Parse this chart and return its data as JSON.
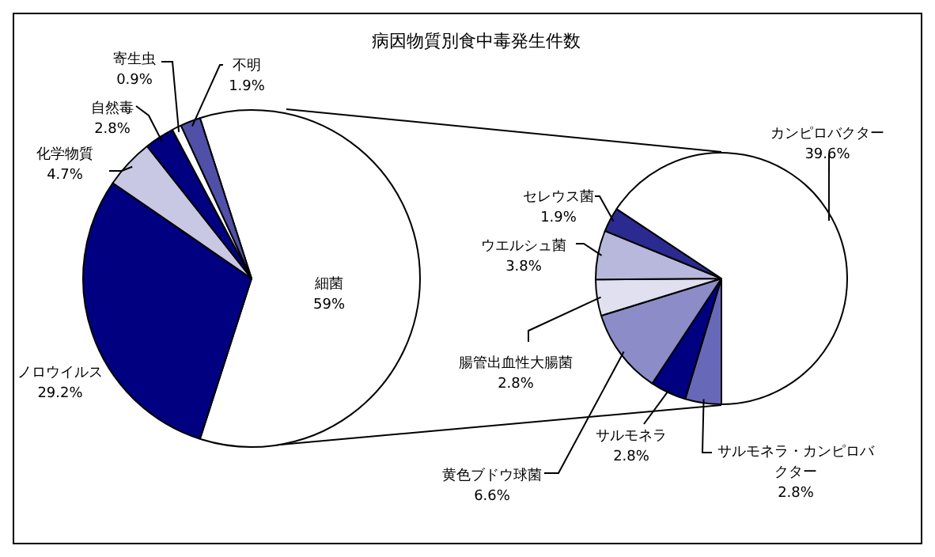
{
  "chart_data": [
    {
      "type": "pie",
      "title": "病因物質別食中毒発生件数",
      "categories": [
        "細菌",
        "ノロウイルス",
        "化学物質",
        "自然毒",
        "寄生虫",
        "不明"
      ],
      "values": [
        59,
        29.2,
        4.7,
        2.8,
        0.9,
        1.9
      ],
      "value_labels": [
        "59%",
        "29.2%",
        "4.7%",
        "2.8%",
        "0.9%",
        "1.9%"
      ],
      "colors": [
        "#ffffff",
        "#000080",
        "#c8c8e4",
        "#000080",
        "#ffffff",
        "#5050a8"
      ],
      "legend": false
    },
    {
      "type": "pie",
      "categories": [
        "サルモネラ・カンピロバクター",
        "サルモネラ",
        "黄色ブドウ球菌",
        "腸管出血性大腸菌",
        "ウエルシュ菌",
        "セレウス菌",
        "カンピロバクター"
      ],
      "values": [
        2.8,
        2.8,
        6.6,
        2.8,
        3.8,
        1.9,
        39.6
      ],
      "value_labels": [
        "2.8%",
        "2.8%",
        "6.6%",
        "2.8%",
        "3.8%",
        "1.9%",
        "39.6%"
      ],
      "colors": [
        "#6868b8",
        "#000080",
        "#8c8cc8",
        "#e0e0f0",
        "#b8b8dc",
        "#2a2a90",
        "#ffffff"
      ],
      "legend": false
    }
  ]
}
